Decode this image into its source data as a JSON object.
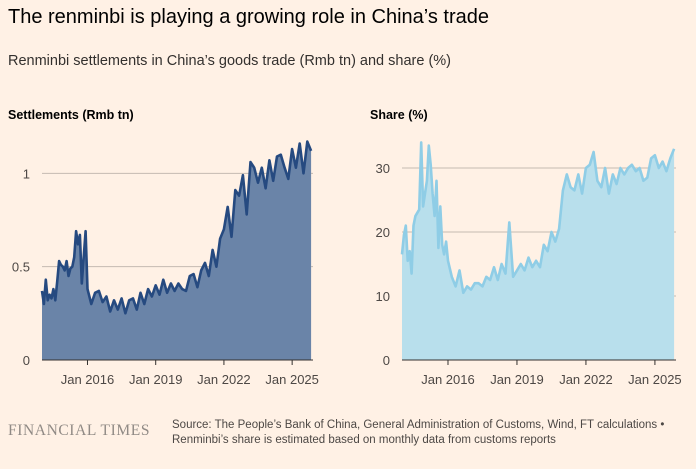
{
  "title": "The renminbi is playing a growing role in China’s trade",
  "subtitle": "Renminbi settlements in China’s goods trade (Rmb tn) and share (%)",
  "footer": {
    "logo": "FINANCIAL TIMES",
    "source": "Source: The People’s Bank of China, General Administration of Customs, Wind, FT calculations • Renminbi’s share is estimated based on monthly data from customs reports"
  },
  "colors": {
    "background": "#fff1e5",
    "settlements_line": "#264a80",
    "settlements_fill": "#6a84a8",
    "share_line": "#8fcde6",
    "share_fill": "#b8dfec"
  },
  "chart_data": [
    {
      "type": "area",
      "title": "Settlements (Rmb tn)",
      "xlabel": "",
      "ylabel": "Settlements (Rmb tn)",
      "xlim": [
        2014.0,
        2025.917
      ],
      "ylim": [
        0,
        1.2
      ],
      "yticks": [
        0,
        0.5,
        1
      ],
      "ytick_labels": [
        "0",
        "0.5",
        "1"
      ],
      "xticks": [
        2016,
        2019,
        2022,
        2025
      ],
      "xtick_labels": [
        "Jan 2016",
        "Jan 2019",
        "Jan 2022",
        "Jan 2025"
      ],
      "series": [
        {
          "name": "Renminbi settlements",
          "x": [
            2014.0,
            2014.083,
            2014.167,
            2014.25,
            2014.333,
            2014.417,
            2014.5,
            2014.583,
            2014.667,
            2014.75,
            2014.833,
            2014.917,
            2015.0,
            2015.083,
            2015.167,
            2015.25,
            2015.333,
            2015.417,
            2015.5,
            2015.583,
            2015.667,
            2015.75,
            2015.833,
            2015.917,
            2016.0,
            2016.167,
            2016.333,
            2016.5,
            2016.667,
            2016.833,
            2017.0,
            2017.167,
            2017.333,
            2017.5,
            2017.667,
            2017.833,
            2018.0,
            2018.167,
            2018.333,
            2018.5,
            2018.667,
            2018.833,
            2019.0,
            2019.167,
            2019.333,
            2019.5,
            2019.667,
            2019.833,
            2020.0,
            2020.167,
            2020.333,
            2020.5,
            2020.667,
            2020.833,
            2021.0,
            2021.167,
            2021.333,
            2021.5,
            2021.667,
            2021.833,
            2022.0,
            2022.167,
            2022.333,
            2022.5,
            2022.667,
            2022.833,
            2023.0,
            2023.167,
            2023.333,
            2023.5,
            2023.667,
            2023.833,
            2024.0,
            2024.167,
            2024.333,
            2024.5,
            2024.667,
            2024.833,
            2025.0,
            2025.167,
            2025.333,
            2025.5,
            2025.667,
            2025.833
          ],
          "values": [
            0.37,
            0.3,
            0.43,
            0.32,
            0.35,
            0.33,
            0.38,
            0.32,
            0.42,
            0.53,
            0.51,
            0.5,
            0.48,
            0.53,
            0.45,
            0.49,
            0.5,
            0.55,
            0.69,
            0.62,
            0.67,
            0.41,
            0.55,
            0.69,
            0.38,
            0.3,
            0.36,
            0.37,
            0.31,
            0.34,
            0.26,
            0.32,
            0.27,
            0.33,
            0.25,
            0.32,
            0.33,
            0.27,
            0.36,
            0.3,
            0.38,
            0.34,
            0.4,
            0.35,
            0.43,
            0.36,
            0.41,
            0.37,
            0.41,
            0.38,
            0.37,
            0.45,
            0.46,
            0.39,
            0.48,
            0.52,
            0.45,
            0.59,
            0.5,
            0.65,
            0.7,
            0.82,
            0.66,
            0.91,
            0.88,
            0.99,
            0.78,
            1.06,
            1.03,
            0.95,
            1.03,
            0.92,
            1.07,
            0.96,
            1.09,
            1.1,
            1.03,
            0.97,
            1.13,
            1.03,
            1.16,
            1.0,
            1.17,
            1.12
          ]
        }
      ]
    },
    {
      "type": "area",
      "title": "Share (%)",
      "xlabel": "",
      "ylabel": "Share (%)",
      "xlim": [
        2014.0,
        2025.917
      ],
      "ylim": [
        0,
        35
      ],
      "yticks": [
        0,
        10,
        20,
        30
      ],
      "ytick_labels": [
        "0",
        "10",
        "20",
        "30"
      ],
      "xticks": [
        2016,
        2019,
        2022,
        2025
      ],
      "xtick_labels": [
        "Jan 2016",
        "Jan 2019",
        "Jan 2022",
        "Jan 2025"
      ],
      "series": [
        {
          "name": "Renminbi share",
          "x": [
            2014.0,
            2014.083,
            2014.167,
            2014.25,
            2014.333,
            2014.417,
            2014.5,
            2014.583,
            2014.667,
            2014.75,
            2014.833,
            2014.917,
            2015.0,
            2015.083,
            2015.167,
            2015.25,
            2015.333,
            2015.417,
            2015.5,
            2015.583,
            2015.667,
            2015.75,
            2015.833,
            2015.917,
            2016.0,
            2016.167,
            2016.333,
            2016.5,
            2016.667,
            2016.833,
            2017.0,
            2017.167,
            2017.333,
            2017.5,
            2017.667,
            2017.833,
            2018.0,
            2018.167,
            2018.333,
            2018.5,
            2018.667,
            2018.833,
            2019.0,
            2019.167,
            2019.333,
            2019.5,
            2019.667,
            2019.833,
            2020.0,
            2020.167,
            2020.333,
            2020.5,
            2020.667,
            2020.833,
            2021.0,
            2021.167,
            2021.333,
            2021.5,
            2021.667,
            2021.833,
            2022.0,
            2022.167,
            2022.333,
            2022.5,
            2022.667,
            2022.833,
            2023.0,
            2023.167,
            2023.333,
            2023.5,
            2023.667,
            2023.833,
            2024.0,
            2024.167,
            2024.333,
            2024.5,
            2024.667,
            2024.833,
            2025.0,
            2025.167,
            2025.333,
            2025.5,
            2025.667,
            2025.833
          ],
          "values": [
            16.5,
            19.5,
            21.0,
            15.5,
            17.0,
            13.5,
            21.0,
            22.5,
            23.0,
            23.5,
            34.0,
            24.0,
            26.0,
            28.0,
            33.5,
            30.5,
            26.0,
            22.5,
            28.0,
            17.5,
            24.0,
            18.0,
            16.5,
            18.5,
            15.5,
            13.0,
            11.5,
            14.0,
            10.5,
            11.5,
            11.0,
            12.0,
            12.0,
            11.5,
            13.0,
            12.5,
            14.5,
            12.5,
            15.0,
            13.5,
            21.5,
            13.0,
            14.0,
            15.0,
            14.0,
            16.0,
            14.5,
            15.5,
            14.5,
            18.0,
            17.0,
            20.0,
            18.5,
            20.5,
            26.5,
            29.0,
            27.0,
            26.5,
            29.0,
            26.0,
            30.0,
            30.5,
            32.5,
            28.0,
            27.0,
            30.0,
            26.0,
            29.0,
            27.5,
            30.0,
            29.0,
            30.0,
            30.5,
            29.5,
            30.0,
            28.0,
            28.5,
            31.5,
            32.0,
            30.0,
            31.0,
            29.5,
            31.5,
            33.0
          ]
        }
      ]
    }
  ]
}
